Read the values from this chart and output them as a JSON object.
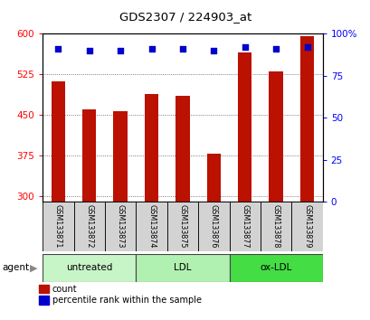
{
  "title": "GDS2307 / 224903_at",
  "samples": [
    "GSM133871",
    "GSM133872",
    "GSM133873",
    "GSM133874",
    "GSM133875",
    "GSM133876",
    "GSM133877",
    "GSM133878",
    "GSM133879"
  ],
  "counts": [
    512,
    460,
    457,
    488,
    486,
    379,
    566,
    531,
    596
  ],
  "percentiles": [
    91,
    90,
    90,
    91,
    91,
    90,
    92,
    91,
    92
  ],
  "groups": [
    {
      "label": "untreated",
      "start": 0,
      "end": 3,
      "color": "#c8f5c8"
    },
    {
      "label": "LDL",
      "start": 3,
      "end": 6,
      "color": "#b0f0b0"
    },
    {
      "label": "ox-LDL",
      "start": 6,
      "end": 9,
      "color": "#44dd44"
    }
  ],
  "bar_color": "#bb1100",
  "dot_color": "#0000cc",
  "ymin": 290,
  "ymax": 600,
  "yticks_left": [
    300,
    375,
    450,
    525,
    600
  ],
  "yticks_right": [
    0,
    25,
    50,
    75,
    100
  ],
  "grid_color": "#555555",
  "background_color": "#ffffff"
}
